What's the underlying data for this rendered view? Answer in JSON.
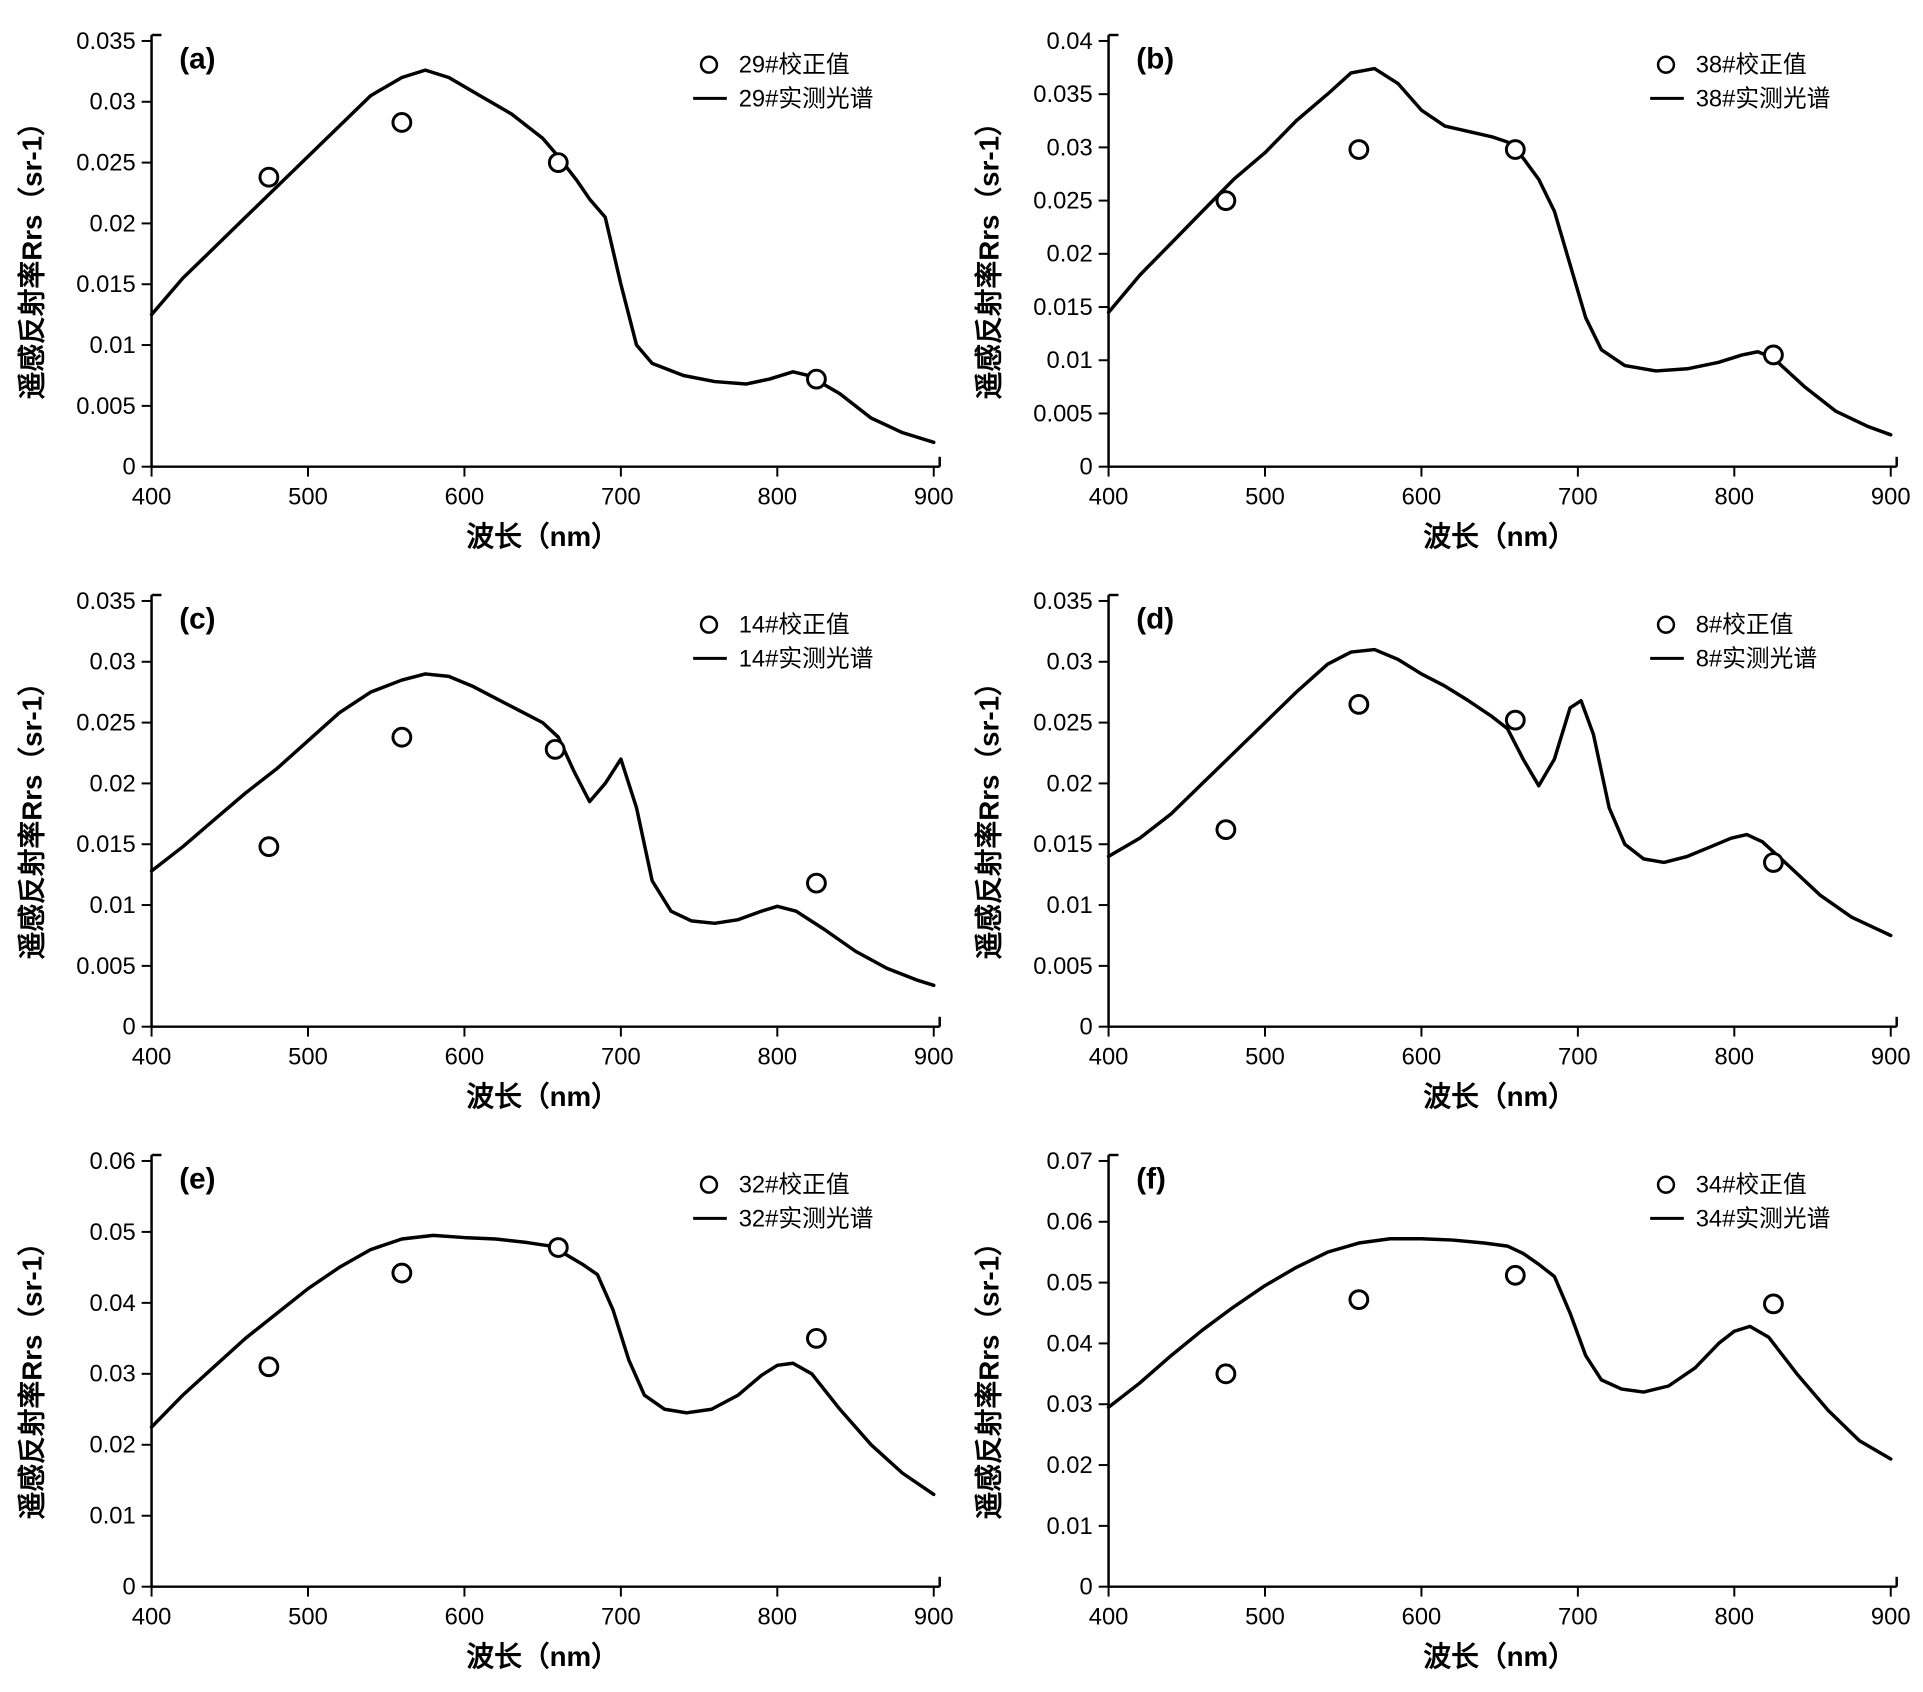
{
  "global": {
    "x_label": "波长（nm）",
    "y_label": "遥感反射率Rrs（sr-1）",
    "x_min": 400,
    "x_max": 900,
    "x_tick_step": 100,
    "line_color": "#000000",
    "marker_color_fill": "#ffffff",
    "marker_color_stroke": "#000000",
    "marker_radius": 9,
    "background_color": "#ffffff",
    "axis_color": "#000000",
    "panel_letter_fontsize": 30,
    "tick_label_fontsize": 24,
    "axis_title_fontsize": 28,
    "legend_fontsize": 24,
    "line_width": 3.5
  },
  "panels": [
    {
      "id": "a",
      "letter": "(a)",
      "type": "line+scatter",
      "y_min": 0,
      "y_max": 0.035,
      "y_tick_step": 0.005,
      "legend_marker": "29#校正值",
      "legend_line": "29#实测光谱",
      "line": [
        [
          400,
          0.0125
        ],
        [
          420,
          0.0155
        ],
        [
          440,
          0.018
        ],
        [
          460,
          0.0205
        ],
        [
          480,
          0.023
        ],
        [
          500,
          0.0255
        ],
        [
          520,
          0.028
        ],
        [
          540,
          0.0305
        ],
        [
          560,
          0.032
        ],
        [
          575,
          0.0326
        ],
        [
          590,
          0.032
        ],
        [
          610,
          0.0305
        ],
        [
          630,
          0.029
        ],
        [
          650,
          0.027
        ],
        [
          660,
          0.0255
        ],
        [
          672,
          0.0235
        ],
        [
          680,
          0.022
        ],
        [
          690,
          0.0205
        ],
        [
          700,
          0.015
        ],
        [
          710,
          0.01
        ],
        [
          720,
          0.0085
        ],
        [
          740,
          0.0075
        ],
        [
          760,
          0.007
        ],
        [
          780,
          0.0068
        ],
        [
          795,
          0.0072
        ],
        [
          810,
          0.0078
        ],
        [
          820,
          0.0075
        ],
        [
          840,
          0.006
        ],
        [
          860,
          0.004
        ],
        [
          880,
          0.0028
        ],
        [
          900,
          0.002
        ]
      ],
      "markers": [
        [
          475,
          0.0238
        ],
        [
          560,
          0.0283
        ],
        [
          660,
          0.025
        ],
        [
          825,
          0.0072
        ]
      ]
    },
    {
      "id": "b",
      "letter": "(b)",
      "type": "line+scatter",
      "y_min": 0,
      "y_max": 0.04,
      "y_tick_step": 0.005,
      "legend_marker": "38#校正值",
      "legend_line": "38#实测光谱",
      "line": [
        [
          400,
          0.0145
        ],
        [
          420,
          0.018
        ],
        [
          440,
          0.021
        ],
        [
          460,
          0.024
        ],
        [
          480,
          0.027
        ],
        [
          500,
          0.0295
        ],
        [
          520,
          0.0325
        ],
        [
          540,
          0.035
        ],
        [
          555,
          0.037
        ],
        [
          570,
          0.0374
        ],
        [
          585,
          0.036
        ],
        [
          600,
          0.0335
        ],
        [
          615,
          0.032
        ],
        [
          630,
          0.0315
        ],
        [
          645,
          0.031
        ],
        [
          655,
          0.0305
        ],
        [
          665,
          0.029
        ],
        [
          675,
          0.027
        ],
        [
          685,
          0.024
        ],
        [
          695,
          0.019
        ],
        [
          705,
          0.014
        ],
        [
          715,
          0.011
        ],
        [
          730,
          0.0095
        ],
        [
          750,
          0.009
        ],
        [
          770,
          0.0092
        ],
        [
          790,
          0.0098
        ],
        [
          805,
          0.0105
        ],
        [
          815,
          0.0108
        ],
        [
          825,
          0.0102
        ],
        [
          845,
          0.0075
        ],
        [
          865,
          0.0052
        ],
        [
          885,
          0.0038
        ],
        [
          900,
          0.003
        ]
      ],
      "markers": [
        [
          475,
          0.025
        ],
        [
          560,
          0.0298
        ],
        [
          660,
          0.0298
        ],
        [
          825,
          0.0105
        ]
      ]
    },
    {
      "id": "c",
      "letter": "(c)",
      "type": "line+scatter",
      "y_min": 0,
      "y_max": 0.035,
      "y_tick_step": 0.005,
      "legend_marker": "14#校正值",
      "legend_line": "14#实测光谱",
      "line": [
        [
          400,
          0.0128
        ],
        [
          420,
          0.0148
        ],
        [
          440,
          0.017
        ],
        [
          460,
          0.0192
        ],
        [
          480,
          0.0212
        ],
        [
          500,
          0.0235
        ],
        [
          520,
          0.0258
        ],
        [
          540,
          0.0275
        ],
        [
          560,
          0.0285
        ],
        [
          575,
          0.029
        ],
        [
          590,
          0.0288
        ],
        [
          605,
          0.028
        ],
        [
          620,
          0.027
        ],
        [
          635,
          0.026
        ],
        [
          650,
          0.025
        ],
        [
          660,
          0.0238
        ],
        [
          670,
          0.021
        ],
        [
          680,
          0.0185
        ],
        [
          690,
          0.02
        ],
        [
          700,
          0.022
        ],
        [
          710,
          0.018
        ],
        [
          720,
          0.012
        ],
        [
          732,
          0.0095
        ],
        [
          745,
          0.0087
        ],
        [
          760,
          0.0085
        ],
        [
          775,
          0.0088
        ],
        [
          790,
          0.0095
        ],
        [
          800,
          0.0099
        ],
        [
          812,
          0.0095
        ],
        [
          830,
          0.008
        ],
        [
          850,
          0.0062
        ],
        [
          870,
          0.0048
        ],
        [
          890,
          0.0038
        ],
        [
          900,
          0.0034
        ]
      ],
      "markers": [
        [
          475,
          0.0148
        ],
        [
          560,
          0.0238
        ],
        [
          658,
          0.0228
        ],
        [
          825,
          0.0118
        ]
      ]
    },
    {
      "id": "d",
      "letter": "(d)",
      "type": "line+scatter",
      "y_min": 0,
      "y_max": 0.035,
      "y_tick_step": 0.005,
      "legend_marker": "8#校正值",
      "legend_line": "8#实测光谱",
      "line": [
        [
          400,
          0.014
        ],
        [
          420,
          0.0155
        ],
        [
          440,
          0.0175
        ],
        [
          460,
          0.02
        ],
        [
          480,
          0.0225
        ],
        [
          500,
          0.025
        ],
        [
          520,
          0.0275
        ],
        [
          540,
          0.0298
        ],
        [
          555,
          0.0308
        ],
        [
          570,
          0.031
        ],
        [
          585,
          0.0302
        ],
        [
          600,
          0.029
        ],
        [
          615,
          0.028
        ],
        [
          630,
          0.0268
        ],
        [
          645,
          0.0255
        ],
        [
          655,
          0.0245
        ],
        [
          665,
          0.022
        ],
        [
          675,
          0.0198
        ],
        [
          685,
          0.022
        ],
        [
          695,
          0.0262
        ],
        [
          702,
          0.0268
        ],
        [
          710,
          0.024
        ],
        [
          720,
          0.018
        ],
        [
          730,
          0.015
        ],
        [
          742,
          0.0138
        ],
        [
          755,
          0.0135
        ],
        [
          770,
          0.014
        ],
        [
          785,
          0.0148
        ],
        [
          798,
          0.0155
        ],
        [
          808,
          0.0158
        ],
        [
          818,
          0.0152
        ],
        [
          835,
          0.0132
        ],
        [
          855,
          0.0108
        ],
        [
          875,
          0.009
        ],
        [
          895,
          0.0078
        ],
        [
          900,
          0.0075
        ]
      ],
      "markers": [
        [
          475,
          0.0162
        ],
        [
          560,
          0.0265
        ],
        [
          660,
          0.0252
        ],
        [
          825,
          0.0135
        ]
      ]
    },
    {
      "id": "e",
      "letter": "(e)",
      "type": "line+scatter",
      "y_min": 0,
      "y_max": 0.06,
      "y_tick_step": 0.01,
      "legend_marker": "32#校正值",
      "legend_line": "32#实测光谱",
      "line": [
        [
          400,
          0.0225
        ],
        [
          420,
          0.027
        ],
        [
          440,
          0.031
        ],
        [
          460,
          0.035
        ],
        [
          480,
          0.0385
        ],
        [
          500,
          0.042
        ],
        [
          520,
          0.045
        ],
        [
          540,
          0.0475
        ],
        [
          560,
          0.049
        ],
        [
          580,
          0.0495
        ],
        [
          600,
          0.0492
        ],
        [
          620,
          0.049
        ],
        [
          640,
          0.0485
        ],
        [
          655,
          0.048
        ],
        [
          665,
          0.0468
        ],
        [
          675,
          0.0455
        ],
        [
          685,
          0.044
        ],
        [
          695,
          0.039
        ],
        [
          705,
          0.032
        ],
        [
          715,
          0.027
        ],
        [
          728,
          0.025
        ],
        [
          742,
          0.0245
        ],
        [
          758,
          0.025
        ],
        [
          775,
          0.027
        ],
        [
          790,
          0.0298
        ],
        [
          800,
          0.0312
        ],
        [
          810,
          0.0315
        ],
        [
          822,
          0.03
        ],
        [
          840,
          0.025
        ],
        [
          860,
          0.02
        ],
        [
          880,
          0.016
        ],
        [
          900,
          0.013
        ]
      ],
      "markers": [
        [
          475,
          0.031
        ],
        [
          560,
          0.0442
        ],
        [
          660,
          0.0478
        ],
        [
          825,
          0.035
        ]
      ]
    },
    {
      "id": "f",
      "letter": "(f)",
      "type": "line+scatter",
      "y_min": 0,
      "y_max": 0.07,
      "y_tick_step": 0.01,
      "legend_marker": "34#校正值",
      "legend_line": "34#实测光谱",
      "line": [
        [
          400,
          0.0295
        ],
        [
          420,
          0.0335
        ],
        [
          440,
          0.038
        ],
        [
          460,
          0.0422
        ],
        [
          480,
          0.046
        ],
        [
          500,
          0.0495
        ],
        [
          520,
          0.0525
        ],
        [
          540,
          0.055
        ],
        [
          560,
          0.0565
        ],
        [
          580,
          0.0572
        ],
        [
          600,
          0.0572
        ],
        [
          620,
          0.057
        ],
        [
          640,
          0.0565
        ],
        [
          655,
          0.056
        ],
        [
          665,
          0.0548
        ],
        [
          675,
          0.053
        ],
        [
          685,
          0.051
        ],
        [
          695,
          0.045
        ],
        [
          705,
          0.038
        ],
        [
          715,
          0.034
        ],
        [
          728,
          0.0325
        ],
        [
          742,
          0.032
        ],
        [
          758,
          0.033
        ],
        [
          775,
          0.036
        ],
        [
          790,
          0.04
        ],
        [
          800,
          0.042
        ],
        [
          810,
          0.0428
        ],
        [
          822,
          0.041
        ],
        [
          840,
          0.035
        ],
        [
          860,
          0.029
        ],
        [
          880,
          0.024
        ],
        [
          900,
          0.021
        ]
      ],
      "markers": [
        [
          475,
          0.035
        ],
        [
          560,
          0.0472
        ],
        [
          660,
          0.0512
        ],
        [
          825,
          0.0465
        ]
      ]
    }
  ]
}
